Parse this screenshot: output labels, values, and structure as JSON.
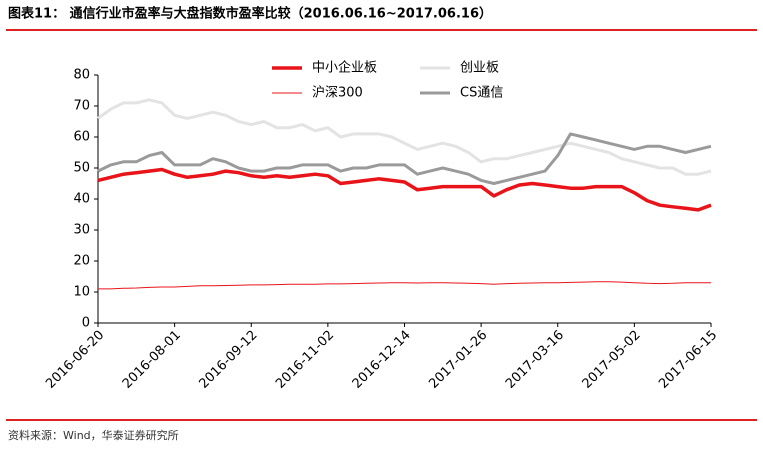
{
  "chart_data": {
    "type": "line",
    "title": "图表11：  通信行业市盈率与大盘指数市盈率比较（2016.06.16~2017.06.16）",
    "source": "资料来源：Wind，华泰证券研究所",
    "categories": [
      "2016-06-20",
      null,
      null,
      null,
      null,
      null,
      "2016-08-01",
      null,
      null,
      null,
      null,
      null,
      "2016-09-12",
      null,
      null,
      null,
      null,
      null,
      "2016-11-02",
      null,
      null,
      null,
      null,
      null,
      "2016-12-14",
      null,
      null,
      null,
      null,
      null,
      "2017-01-26",
      null,
      null,
      null,
      null,
      null,
      "2017-03-16",
      null,
      null,
      null,
      null,
      null,
      "2017-05-02",
      null,
      null,
      null,
      null,
      null,
      "2017-06-15"
    ],
    "ylim": [
      0,
      80
    ],
    "yticks": [
      0,
      10,
      20,
      30,
      40,
      50,
      60,
      70,
      80
    ],
    "grid": false,
    "series": [
      {
        "name": "中小企业板",
        "color": "#e8141a",
        "width": 3.5,
        "values": [
          46,
          47,
          48,
          48.5,
          49,
          49.5,
          48,
          47,
          47.5,
          48,
          49,
          48.5,
          47.5,
          47,
          47.5,
          47,
          47.5,
          48,
          47.5,
          45,
          45.5,
          46,
          46.5,
          46,
          45.5,
          43,
          43.5,
          44,
          44,
          44,
          44,
          41,
          43,
          44.5,
          45,
          44.5,
          44,
          43.5,
          43.5,
          44,
          44,
          44,
          42,
          39.5,
          38,
          37.5,
          37,
          36.5,
          38
        ]
      },
      {
        "name": "创业板",
        "color": "#e3e3e3",
        "width": 3,
        "values": [
          66,
          69,
          71,
          71,
          72,
          71,
          67,
          66,
          67,
          68,
          67,
          65,
          64,
          65,
          63,
          63,
          64,
          62,
          63,
          60,
          61,
          61,
          61,
          60,
          58,
          56,
          57,
          58,
          57,
          55,
          52,
          53,
          53,
          54,
          55,
          56,
          57,
          58,
          57,
          56,
          55,
          53,
          52,
          51,
          50,
          50,
          48,
          48,
          49
        ]
      },
      {
        "name": "沪深300",
        "color": "#e8141a",
        "width": 1,
        "values": [
          11,
          11,
          11.2,
          11.3,
          11.5,
          11.6,
          11.6,
          11.8,
          12,
          12,
          12.1,
          12.2,
          12.3,
          12.3,
          12.4,
          12.5,
          12.5,
          12.5,
          12.6,
          12.6,
          12.7,
          12.8,
          12.9,
          13,
          13,
          12.9,
          13,
          13,
          12.9,
          12.8,
          12.7,
          12.5,
          12.7,
          12.8,
          12.9,
          13,
          13,
          13.1,
          13.2,
          13.3,
          13.3,
          13.2,
          13,
          12.8,
          12.7,
          12.8,
          13,
          13,
          13
        ]
      },
      {
        "name": "CS通信",
        "color": "#9a9a9a",
        "width": 3,
        "values": [
          49,
          51,
          52,
          52,
          54,
          55,
          51,
          51,
          51,
          53,
          52,
          50,
          49,
          49,
          50,
          50,
          51,
          51,
          51,
          49,
          50,
          50,
          51,
          51,
          51,
          48,
          49,
          50,
          49,
          48,
          46,
          45,
          46,
          47,
          48,
          49,
          54,
          61,
          60,
          59,
          58,
          57,
          56,
          57,
          57,
          56,
          55,
          56,
          57
        ]
      }
    ]
  }
}
